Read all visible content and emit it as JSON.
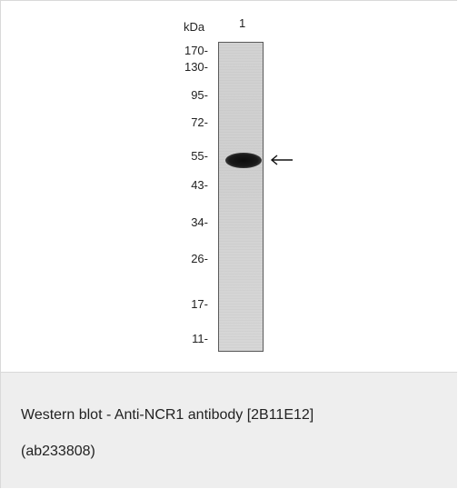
{
  "blot": {
    "unit_label": "kDa",
    "lanes": [
      "1"
    ],
    "markers": [
      "170-",
      "130-",
      "95-",
      "72-",
      "55-",
      "43-",
      "34-",
      "26-",
      "17-",
      "11-"
    ]
  },
  "caption": {
    "line1": "Western blot - Anti-NCR1 antibody [2B11E12]",
    "line2": "(ab233808)"
  }
}
